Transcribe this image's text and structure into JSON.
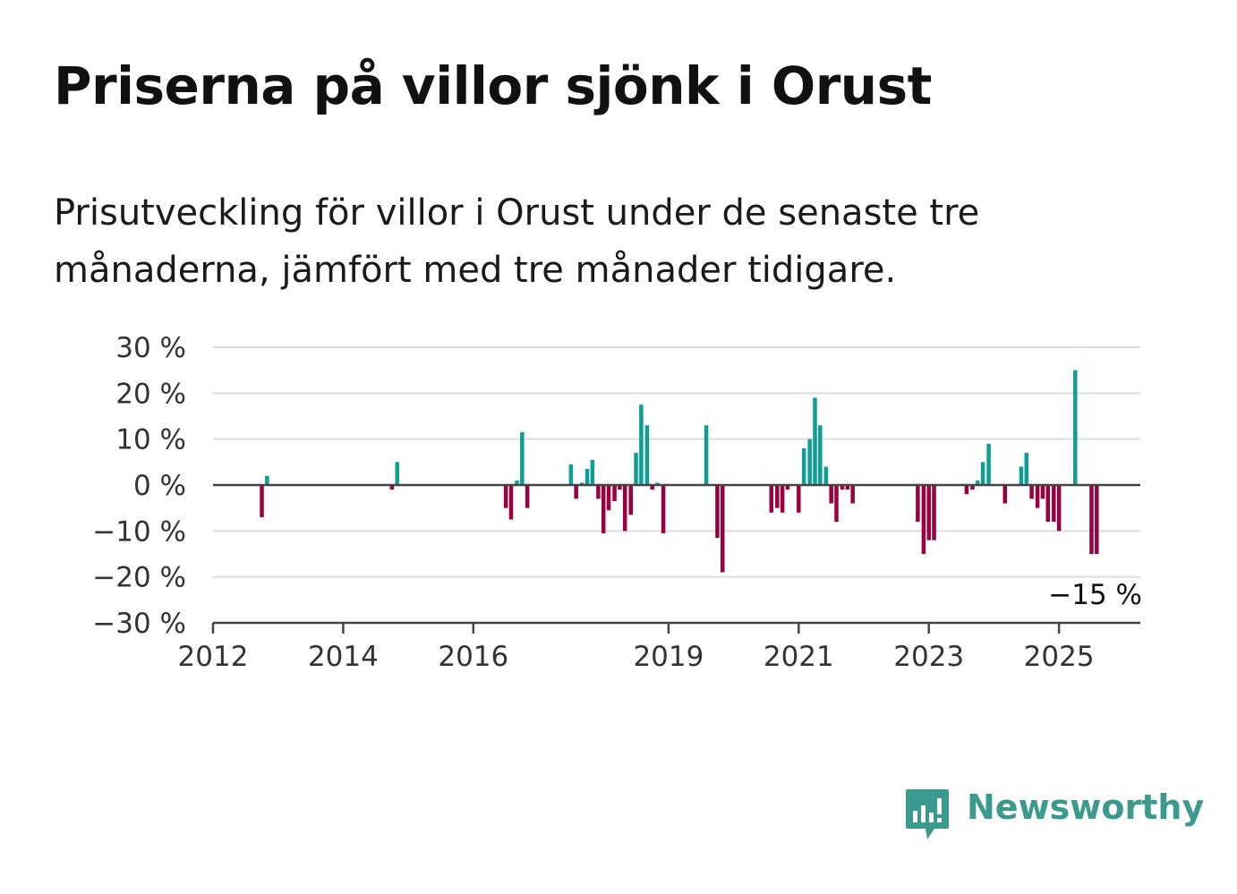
{
  "title": "Priserna på villor sjönk i Orust",
  "subtitle": "Prisutveckling för villor i Orust under de senaste tre månaderna, jämfört med tre månader tidigare.",
  "brand": {
    "name": "Newsworthy",
    "icon": "newsworthy-logo-icon",
    "color": "#3a9a8e"
  },
  "colors": {
    "positive": "#0f9e93",
    "negative": "#9b0040",
    "grid": "#dddddd",
    "axis": "#444444"
  },
  "chart_data": {
    "type": "bar",
    "ylim": [
      -30,
      30
    ],
    "yticks": [
      30,
      20,
      10,
      0,
      -10,
      -20,
      -30
    ],
    "ytick_labels": [
      "30 %",
      "20 %",
      "10 %",
      "0 %",
      "−10 %",
      "−20 %",
      "−30 %"
    ],
    "xlim": [
      2012.0,
      2026.25
    ],
    "xticks": [
      2012,
      2014,
      2016,
      2019,
      2021,
      2023,
      2025
    ],
    "xtick_labels": [
      "2012",
      "2014",
      "2016",
      "2019",
      "2021",
      "2023",
      "2025"
    ],
    "grid": true,
    "annotation": {
      "text": "−15 %",
      "x": 2025.5,
      "y": -15
    },
    "bars": [
      {
        "x": 2012.75,
        "y": -7
      },
      {
        "x": 2012.83,
        "y": 2
      },
      {
        "x": 2014.75,
        "y": -1
      },
      {
        "x": 2014.83,
        "y": 5
      },
      {
        "x": 2016.5,
        "y": -5
      },
      {
        "x": 2016.58,
        "y": -7.5
      },
      {
        "x": 2016.67,
        "y": 1
      },
      {
        "x": 2016.75,
        "y": 11.5
      },
      {
        "x": 2016.83,
        "y": -5
      },
      {
        "x": 2017.5,
        "y": 4.5
      },
      {
        "x": 2017.58,
        "y": -3
      },
      {
        "x": 2017.67,
        "y": 0.5
      },
      {
        "x": 2017.75,
        "y": 3.5
      },
      {
        "x": 2017.83,
        "y": 5.5
      },
      {
        "x": 2017.92,
        "y": -3
      },
      {
        "x": 2018.0,
        "y": -10.5
      },
      {
        "x": 2018.08,
        "y": -5.5
      },
      {
        "x": 2018.17,
        "y": -3.5
      },
      {
        "x": 2018.25,
        "y": -1
      },
      {
        "x": 2018.33,
        "y": -10
      },
      {
        "x": 2018.42,
        "y": -6.5
      },
      {
        "x": 2018.5,
        "y": 7
      },
      {
        "x": 2018.58,
        "y": 17.5
      },
      {
        "x": 2018.67,
        "y": 13
      },
      {
        "x": 2018.75,
        "y": -1
      },
      {
        "x": 2018.83,
        "y": 0.5
      },
      {
        "x": 2018.92,
        "y": -10.5
      },
      {
        "x": 2019.58,
        "y": 13
      },
      {
        "x": 2019.75,
        "y": -11.5
      },
      {
        "x": 2019.83,
        "y": -19
      },
      {
        "x": 2020.58,
        "y": -6
      },
      {
        "x": 2020.67,
        "y": -5
      },
      {
        "x": 2020.75,
        "y": -6
      },
      {
        "x": 2020.83,
        "y": -1
      },
      {
        "x": 2021.0,
        "y": -6
      },
      {
        "x": 2021.08,
        "y": 8
      },
      {
        "x": 2021.17,
        "y": 10
      },
      {
        "x": 2021.25,
        "y": 19
      },
      {
        "x": 2021.33,
        "y": 13
      },
      {
        "x": 2021.42,
        "y": 4
      },
      {
        "x": 2021.5,
        "y": -4
      },
      {
        "x": 2021.58,
        "y": -8
      },
      {
        "x": 2021.67,
        "y": -1
      },
      {
        "x": 2021.75,
        "y": -1
      },
      {
        "x": 2021.83,
        "y": -4
      },
      {
        "x": 2022.83,
        "y": -8
      },
      {
        "x": 2022.92,
        "y": -15
      },
      {
        "x": 2023.0,
        "y": -12
      },
      {
        "x": 2023.08,
        "y": -12
      },
      {
        "x": 2023.58,
        "y": -2
      },
      {
        "x": 2023.67,
        "y": -1
      },
      {
        "x": 2023.75,
        "y": 1
      },
      {
        "x": 2023.83,
        "y": 5
      },
      {
        "x": 2023.92,
        "y": 9
      },
      {
        "x": 2024.17,
        "y": -4
      },
      {
        "x": 2024.42,
        "y": 4
      },
      {
        "x": 2024.5,
        "y": 7
      },
      {
        "x": 2024.58,
        "y": -3
      },
      {
        "x": 2024.67,
        "y": -5
      },
      {
        "x": 2024.75,
        "y": -3
      },
      {
        "x": 2024.83,
        "y": -8
      },
      {
        "x": 2024.92,
        "y": -8
      },
      {
        "x": 2025.0,
        "y": -10
      },
      {
        "x": 2025.25,
        "y": 25
      },
      {
        "x": 2025.5,
        "y": -15
      },
      {
        "x": 2025.58,
        "y": -15
      }
    ]
  }
}
